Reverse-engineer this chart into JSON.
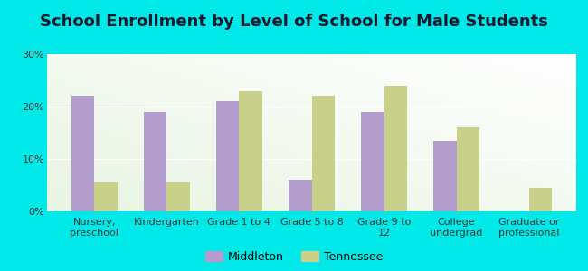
{
  "title": "School Enrollment by Level of School for Male Students",
  "categories": [
    "Nursery,\npreschool",
    "Kindergarten",
    "Grade 1 to 4",
    "Grade 5 to 8",
    "Grade 9 to\n12",
    "College\nundergrad",
    "Graduate or\nprofessional"
  ],
  "middleton": [
    22,
    19,
    21,
    6,
    19,
    13.5,
    0
  ],
  "tennessee": [
    5.5,
    5.5,
    23,
    22,
    24,
    16,
    4.5
  ],
  "middleton_color": "#b39dcc",
  "tennessee_color": "#c8d08a",
  "background_color": "#00e8e8",
  "plot_bg": "#e8f5e2",
  "ylim": [
    0,
    30
  ],
  "yticks": [
    0,
    10,
    20,
    30
  ],
  "ytick_labels": [
    "0%",
    "10%",
    "20%",
    "30%"
  ],
  "title_fontsize": 13,
  "legend_labels": [
    "Middleton",
    "Tennessee"
  ],
  "bar_width": 0.32,
  "grid_color": "#ffffff",
  "tick_color": "#aaaaaa",
  "label_fontsize": 8,
  "ytick_fontsize": 8
}
